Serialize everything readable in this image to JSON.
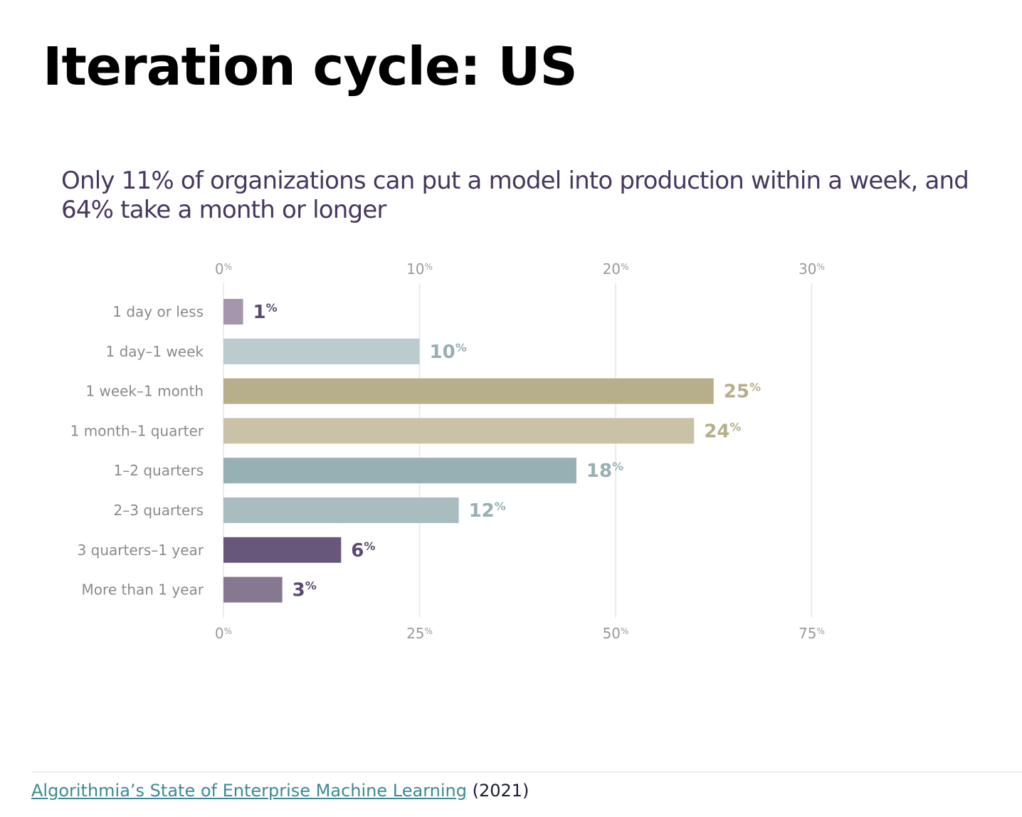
{
  "page": {
    "title": "Iteration cycle: US",
    "subtitle": "Only 11% of organizations can put a model into production within a week, and 64% take a month or longer"
  },
  "footer": {
    "link_text": "Algorithmia’s State of Enterprise Machine Learning",
    "suffix": "(2021)"
  },
  "chart_data": {
    "type": "bar",
    "orientation": "horizontal",
    "title": "",
    "xlabel": "",
    "ylabel": "",
    "grid": true,
    "categories": [
      "1 day or less",
      "1 day–1 week",
      "1 week–1 month",
      "1 month–1 quarter",
      "1–2 quarters",
      "2–3 quarters",
      "3 quarters–1 year",
      "More than 1 year"
    ],
    "values": [
      1,
      10,
      25,
      24,
      18,
      12,
      6,
      3
    ],
    "data_labels": [
      "1",
      "10",
      "25",
      "24",
      "18",
      "12",
      "6",
      "3"
    ],
    "value_suffix": "%",
    "bar_colors": [
      "#a596ae",
      "#bccbce",
      "#b7ae8b",
      "#c9c2a6",
      "#96b0b3",
      "#a9bdc0",
      "#67577a",
      "#877892"
    ],
    "label_colors": [
      "#5b4a73",
      "#96b0b3",
      "#b7ae8b",
      "#b7ae8b",
      "#96b0b3",
      "#96b0b3",
      "#5b4a73",
      "#5b4a73"
    ],
    "top_axis": {
      "range": [
        0,
        30
      ],
      "ticks": [
        0,
        10,
        20,
        30
      ],
      "tick_labels": [
        "0",
        "10",
        "20",
        "30"
      ],
      "tick_suffix": "%"
    },
    "bottom_axis": {
      "range": [
        0,
        75
      ],
      "ticks": [
        0,
        25,
        50,
        75
      ],
      "tick_labels": [
        "0",
        "25",
        "50",
        "75"
      ],
      "tick_suffix": "%"
    },
    "category_label_color": "#8a8a8a",
    "tick_label_color": "#9a9a9a",
    "grid_color": "#e6e6e6"
  }
}
